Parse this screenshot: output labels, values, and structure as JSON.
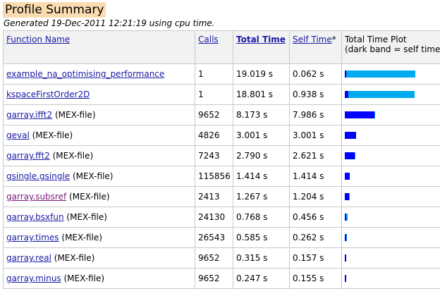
{
  "header": {
    "title": "Profile Summary",
    "subtitle": "Generated 19-Dec-2011 12:21:19 using cpu time."
  },
  "columns": {
    "function_name": "Function Name",
    "calls": "Calls",
    "total_time": "Total Time",
    "self_time": "Self Time",
    "self_time_marker": "*",
    "plot_line1": "Total Time Plot",
    "plot_line2": "(dark band = self time)"
  },
  "colors": {
    "self_band": "#0000ff",
    "total_band": "#00aaf0",
    "title_bg": "#fbdcb0"
  },
  "rows": [
    {
      "name": "example_na_optimising_performance",
      "suffix": "",
      "calls": "1",
      "total_time": "19.019 s",
      "self_time": "0.062 s",
      "total": 19.019,
      "self": 0.062
    },
    {
      "name": "kspaceFirstOrder2D",
      "suffix": "",
      "calls": "1",
      "total_time": "18.801 s",
      "self_time": "0.938 s",
      "total": 18.801,
      "self": 0.938
    },
    {
      "name": "garray.ifft2",
      "suffix": "(MEX-file)",
      "calls": "9652",
      "total_time": "8.173 s",
      "self_time": "7.986 s",
      "total": 8.173,
      "self": 7.986
    },
    {
      "name": "geval",
      "suffix": "(MEX-file)",
      "calls": "4826",
      "total_time": "3.001 s",
      "self_time": "3.001 s",
      "total": 3.001,
      "self": 3.001
    },
    {
      "name": "garray.fft2",
      "suffix": "(MEX-file)",
      "calls": "7243",
      "total_time": "2.790 s",
      "self_time": "2.621 s",
      "total": 2.79,
      "self": 2.621
    },
    {
      "name": "gsingle.gsingle",
      "suffix": "(MEX-file)",
      "calls": "115856",
      "total_time": "1.414 s",
      "self_time": "1.414 s",
      "total": 1.414,
      "self": 1.414
    },
    {
      "name": "garray.subsref",
      "suffix": "(MEX-file)",
      "calls": "2413",
      "total_time": "1.267 s",
      "self_time": "1.204 s",
      "total": 1.267,
      "self": 1.204,
      "visited": true
    },
    {
      "name": "garray.bsxfun",
      "suffix": "(MEX-file)",
      "calls": "24130",
      "total_time": "0.768 s",
      "self_time": "0.456 s",
      "total": 0.768,
      "self": 0.456
    },
    {
      "name": "garray.times",
      "suffix": "(MEX-file)",
      "calls": "26543",
      "total_time": "0.585 s",
      "self_time": "0.262 s",
      "total": 0.585,
      "self": 0.262
    },
    {
      "name": "garray.real",
      "suffix": "(MEX-file)",
      "calls": "9652",
      "total_time": "0.315 s",
      "self_time": "0.157 s",
      "total": 0.315,
      "self": 0.157
    },
    {
      "name": "garray.minus",
      "suffix": "(MEX-file)",
      "calls": "9652",
      "total_time": "0.247 s",
      "self_time": "0.155 s",
      "total": 0.247,
      "self": 0.155
    }
  ]
}
